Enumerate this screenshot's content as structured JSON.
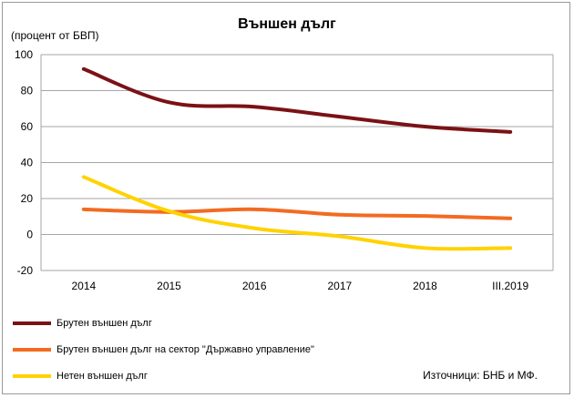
{
  "chart_data": {
    "type": "line",
    "title": "Външен дълг",
    "ylabel": "(процент от БВП)",
    "categories": [
      "2014",
      "2015",
      "2016",
      "2017",
      "2018",
      "III.2019"
    ],
    "ylim": [
      -20,
      100
    ],
    "yticks": [
      -20,
      0,
      20,
      40,
      60,
      80,
      100
    ],
    "grid": true,
    "legend_position": "bottom",
    "series": [
      {
        "name": "Брутен външен дълг",
        "color": "#7b1116",
        "values": [
          92,
          73.5,
          71,
          65.5,
          60,
          57
        ]
      },
      {
        "name": "Брутен външен дълг на сектор \"Държавно управление\"",
        "color": "#f26b21",
        "values": [
          14,
          12.5,
          14,
          11,
          10.3,
          9
        ]
      },
      {
        "name": "Нетен външен дълг",
        "color": "#ffd200",
        "values": [
          32,
          13,
          3.5,
          -1,
          -7.5,
          -7.5
        ]
      }
    ]
  },
  "source_note": "Източници: БНБ и МФ."
}
